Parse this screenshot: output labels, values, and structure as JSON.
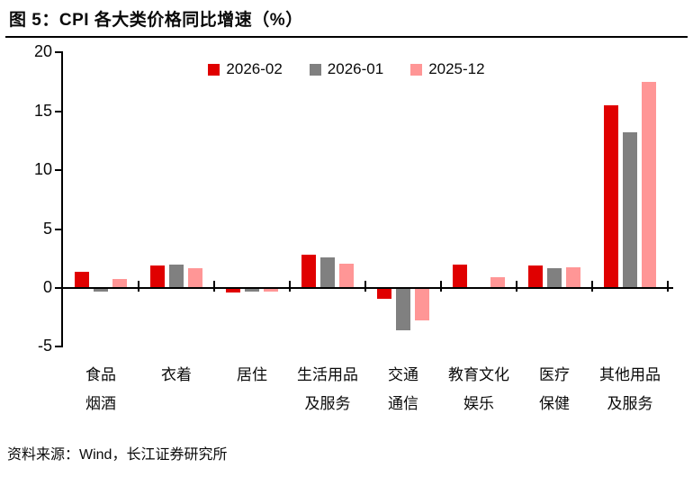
{
  "figure": {
    "title": "图 5：CPI 各大类价格同比增速（%）",
    "source": "资料来源：Wind，长江证券研究所"
  },
  "colors": {
    "series_red": "#e00000",
    "series_gray": "#808080",
    "series_pink": "#ff9696",
    "axis": "#000000"
  },
  "chart_data": {
    "type": "bar",
    "title": "CPI 各大类价格同比增速（%）",
    "categories": [
      "食品烟酒",
      "衣着",
      "居住",
      "生活用品及服务",
      "交通通信",
      "教育文化娱乐",
      "医疗保健",
      "其他用品及服务"
    ],
    "category_label_lines": [
      [
        "食品",
        "烟酒"
      ],
      [
        "衣着"
      ],
      [
        "居住"
      ],
      [
        "生活用品",
        "及服务"
      ],
      [
        "交通",
        "通信"
      ],
      [
        "教育文化",
        "娱乐"
      ],
      [
        "医疗",
        "保健"
      ],
      [
        "其他用品",
        "及服务"
      ]
    ],
    "series": [
      {
        "name": "2026-02",
        "color": "#e00000",
        "values": [
          1.4,
          1.9,
          -0.3,
          2.8,
          -0.8,
          2.0,
          1.9,
          15.5
        ]
      },
      {
        "name": "2026-01",
        "color": "#808080",
        "values": [
          -0.2,
          2.0,
          -0.2,
          2.6,
          -3.5,
          0.0,
          1.7,
          13.2
        ]
      },
      {
        "name": "2025-12",
        "color": "#ff9696",
        "values": [
          0.8,
          1.7,
          -0.2,
          2.1,
          -2.7,
          0.9,
          1.8,
          17.5
        ]
      }
    ],
    "ylim": [
      -5,
      20
    ],
    "yticks": [
      20,
      15,
      10,
      5,
      0,
      -5
    ],
    "grid": false,
    "legend_position": "top-center"
  }
}
